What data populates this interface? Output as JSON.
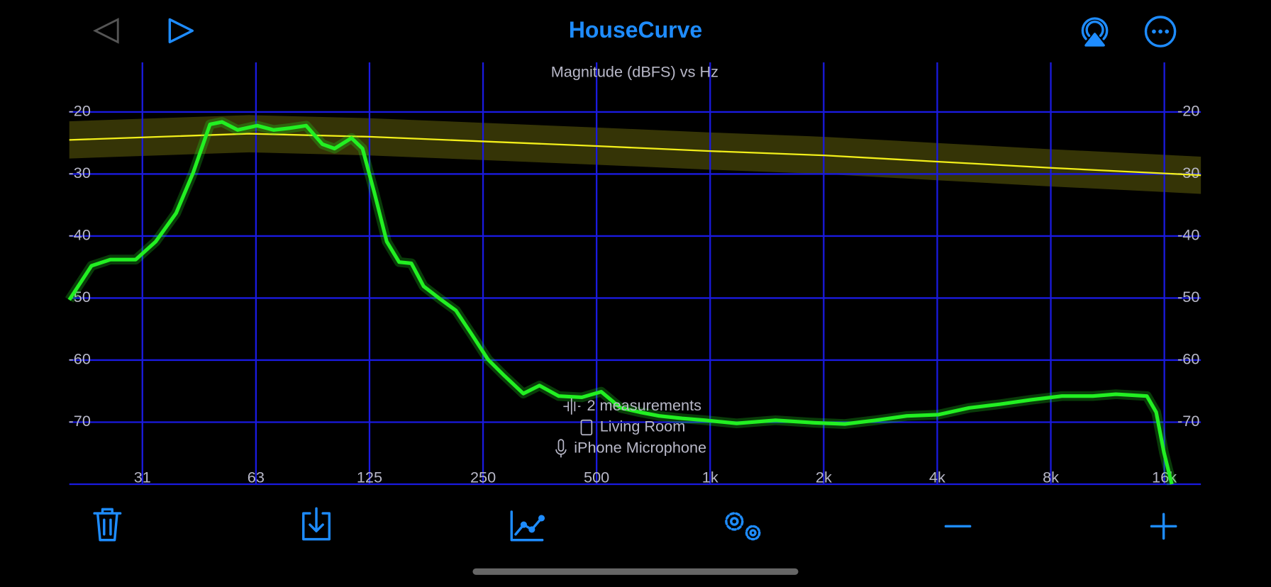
{
  "app": {
    "title": "HouseCurve"
  },
  "chart_data": {
    "type": "line",
    "title": "Magnitude (dBFS) vs Hz",
    "log_x": true,
    "grid": true,
    "xlim": [
      20,
      20000
    ],
    "ylim": [
      -80,
      -12
    ],
    "xticks": [
      {
        "value": 31.25,
        "label": "31"
      },
      {
        "value": 62.5,
        "label": "63"
      },
      125,
      250,
      500,
      {
        "value": 1000,
        "label": "1k"
      },
      {
        "value": 2000,
        "label": "2k"
      },
      {
        "value": 4000,
        "label": "4k"
      },
      {
        "value": 8000,
        "label": "8k"
      },
      {
        "value": 16000,
        "label": "16k"
      }
    ],
    "yticks": [
      -20,
      -30,
      -40,
      -50,
      -60,
      -70
    ],
    "tolerance": 3,
    "series": [
      {
        "color": "#f2ee1a",
        "x": [
          20,
          60,
          125,
          500,
          1000,
          2000,
          4000,
          8000,
          20000
        ],
        "values": [
          -24.5,
          -23.5,
          -24,
          -25.5,
          -26.3,
          -27,
          -28,
          -29,
          -30.2
        ]
      },
      {
        "color": "#22f022",
        "x": [
          20,
          22.9,
          25.7,
          30,
          33.9,
          38.4,
          42.6,
          47.2,
          50.8,
          55.9,
          63,
          69.6,
          76.9,
          84.9,
          93.8,
          101,
          112,
          119.8,
          128.9,
          138.9,
          149.8,
          161.4,
          173.9,
          191.9,
          211.8,
          233.6,
          257.7,
          284.4,
          319.7,
          352.8,
          396.9,
          457,
          514,
          579,
          651,
          733,
          844,
          971,
          1176,
          1490,
          1883,
          2276,
          2750,
          3322,
          4020,
          4860,
          5870,
          7090,
          8560,
          10340,
          11900,
          14380,
          15220,
          15960,
          16750
        ],
        "values": [
          -50.3,
          -44.8,
          -43.8,
          -43.8,
          -40.9,
          -36.3,
          -29.8,
          -22,
          -21.6,
          -22.9,
          -22.2,
          -22.9,
          -22.6,
          -22.2,
          -25.2,
          -25.9,
          -24.2,
          -25.9,
          -33.1,
          -40.9,
          -44.2,
          -44.4,
          -48.1,
          -50.1,
          -52,
          -55.9,
          -59.9,
          -62.5,
          -65.4,
          -64.1,
          -65.8,
          -66,
          -65.1,
          -67.7,
          -68.4,
          -69,
          -69.4,
          -69.7,
          -70.2,
          -69.7,
          -70.1,
          -70.3,
          -69.7,
          -69,
          -68.8,
          -67.7,
          -67.1,
          -66.4,
          -65.8,
          -65.8,
          -65.5,
          -65.8,
          -68.4,
          -74.9,
          -80
        ]
      }
    ]
  },
  "info": [
    "2 measurements",
    "Living Room",
    "iPhone Microphone"
  ]
}
